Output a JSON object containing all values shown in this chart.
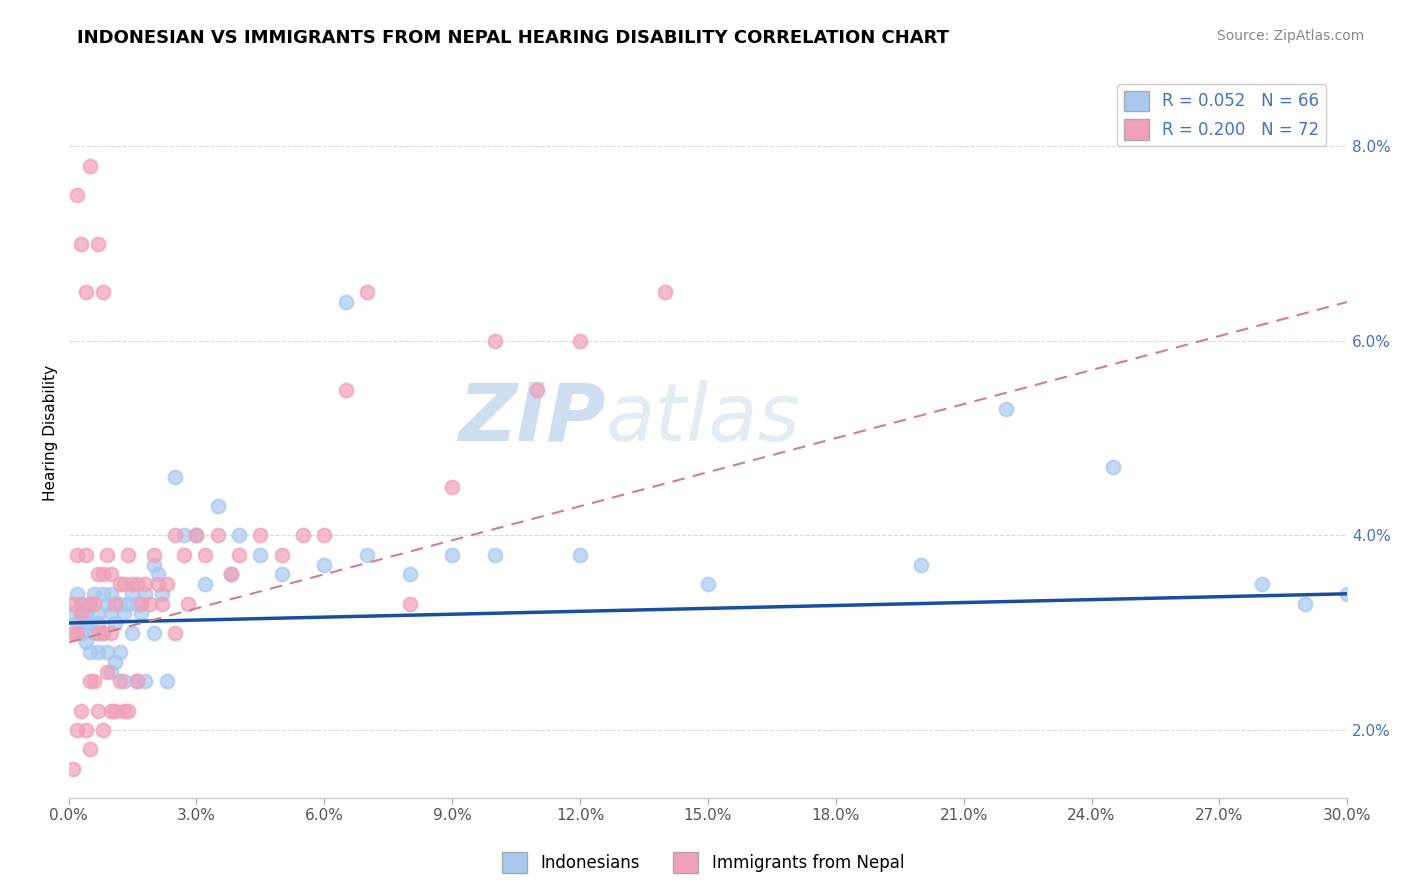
{
  "title": "INDONESIAN VS IMMIGRANTS FROM NEPAL HEARING DISABILITY CORRELATION CHART",
  "source": "Source: ZipAtlas.com",
  "ylabel": "Hearing Disability",
  "xlabel": "",
  "xlim": [
    0.0,
    0.3
  ],
  "ylim": [
    0.013,
    0.088
  ],
  "xticks": [
    0.0,
    0.03,
    0.06,
    0.09,
    0.12,
    0.15,
    0.18,
    0.21,
    0.24,
    0.27,
    0.3
  ],
  "xticklabels": [
    "0.0%",
    "3.0%",
    "6.0%",
    "9.0%",
    "12.0%",
    "15.0%",
    "18.0%",
    "21.0%",
    "24.0%",
    "27.0%",
    "30.0%"
  ],
  "yticks": [
    0.02,
    0.04,
    0.06,
    0.08
  ],
  "yticklabels": [
    "2.0%",
    "4.0%",
    "6.0%",
    "8.0%"
  ],
  "blue_color": "#a8c8f0",
  "pink_color": "#f0a0b8",
  "blue_line_color": "#1a4fa0",
  "pink_line_color": "#d08090",
  "legend_label1": "Indonesians",
  "legend_label2": "Immigrants from Nepal",
  "watermark_color": "#c8daf0",
  "blue_x": [
    0.001,
    0.002,
    0.002,
    0.003,
    0.003,
    0.003,
    0.004,
    0.004,
    0.004,
    0.005,
    0.005,
    0.005,
    0.006,
    0.006,
    0.007,
    0.007,
    0.007,
    0.008,
    0.008,
    0.009,
    0.009,
    0.01,
    0.01,
    0.01,
    0.011,
    0.011,
    0.012,
    0.012,
    0.013,
    0.013,
    0.014,
    0.015,
    0.015,
    0.016,
    0.016,
    0.017,
    0.018,
    0.018,
    0.02,
    0.02,
    0.021,
    0.022,
    0.023,
    0.025,
    0.027,
    0.03,
    0.032,
    0.035,
    0.038,
    0.04,
    0.045,
    0.05,
    0.06,
    0.065,
    0.07,
    0.08,
    0.09,
    0.1,
    0.12,
    0.15,
    0.2,
    0.22,
    0.245,
    0.28,
    0.29,
    0.3
  ],
  "blue_y": [
    0.032,
    0.034,
    0.031,
    0.033,
    0.032,
    0.03,
    0.032,
    0.031,
    0.029,
    0.033,
    0.031,
    0.028,
    0.034,
    0.03,
    0.032,
    0.031,
    0.028,
    0.034,
    0.03,
    0.033,
    0.028,
    0.034,
    0.032,
    0.026,
    0.031,
    0.027,
    0.033,
    0.028,
    0.032,
    0.025,
    0.033,
    0.034,
    0.03,
    0.033,
    0.025,
    0.032,
    0.034,
    0.025,
    0.037,
    0.03,
    0.036,
    0.034,
    0.025,
    0.046,
    0.04,
    0.04,
    0.035,
    0.043,
    0.036,
    0.04,
    0.038,
    0.036,
    0.037,
    0.064,
    0.038,
    0.036,
    0.038,
    0.038,
    0.038,
    0.035,
    0.037,
    0.053,
    0.047,
    0.035,
    0.033,
    0.034
  ],
  "pink_x": [
    0.001,
    0.001,
    0.001,
    0.002,
    0.002,
    0.002,
    0.003,
    0.003,
    0.003,
    0.004,
    0.004,
    0.005,
    0.005,
    0.005,
    0.006,
    0.006,
    0.007,
    0.007,
    0.007,
    0.008,
    0.008,
    0.008,
    0.009,
    0.009,
    0.01,
    0.01,
    0.01,
    0.011,
    0.011,
    0.012,
    0.012,
    0.013,
    0.013,
    0.014,
    0.014,
    0.015,
    0.016,
    0.016,
    0.017,
    0.018,
    0.019,
    0.02,
    0.021,
    0.022,
    0.023,
    0.025,
    0.025,
    0.027,
    0.028,
    0.03,
    0.032,
    0.035,
    0.038,
    0.04,
    0.045,
    0.05,
    0.055,
    0.06,
    0.065,
    0.07,
    0.08,
    0.09,
    0.1,
    0.11,
    0.12,
    0.14,
    0.002,
    0.003,
    0.004,
    0.005,
    0.007,
    0.008
  ],
  "pink_y": [
    0.033,
    0.03,
    0.016,
    0.038,
    0.03,
    0.02,
    0.033,
    0.032,
    0.022,
    0.038,
    0.02,
    0.033,
    0.025,
    0.018,
    0.033,
    0.025,
    0.036,
    0.03,
    0.022,
    0.036,
    0.03,
    0.02,
    0.038,
    0.026,
    0.036,
    0.03,
    0.022,
    0.033,
    0.022,
    0.035,
    0.025,
    0.035,
    0.022,
    0.038,
    0.022,
    0.035,
    0.035,
    0.025,
    0.033,
    0.035,
    0.033,
    0.038,
    0.035,
    0.033,
    0.035,
    0.04,
    0.03,
    0.038,
    0.033,
    0.04,
    0.038,
    0.04,
    0.036,
    0.038,
    0.04,
    0.038,
    0.04,
    0.04,
    0.055,
    0.065,
    0.033,
    0.045,
    0.06,
    0.055,
    0.06,
    0.065,
    0.075,
    0.07,
    0.065,
    0.078,
    0.07,
    0.065
  ],
  "blue_trend": [
    0.0,
    0.3,
    0.031,
    0.034
  ],
  "pink_trend": [
    0.0,
    0.3,
    0.029,
    0.064
  ],
  "title_fontsize": 13,
  "source_fontsize": 10,
  "axis_label_fontsize": 11,
  "tick_fontsize": 11,
  "legend_fontsize": 12
}
